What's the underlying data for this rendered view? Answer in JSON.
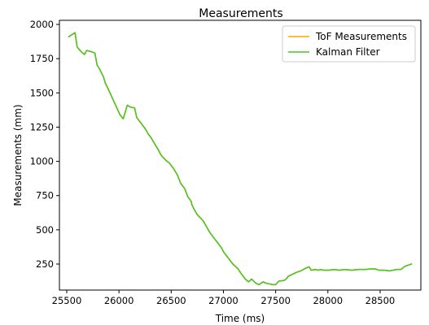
{
  "chart_data": {
    "type": "line",
    "title": "Measurements",
    "xlabel": "Time (ms)",
    "ylabel": "Measurements (mm)",
    "xlim": [
      25430,
      28890
    ],
    "ylim": [
      60,
      2030
    ],
    "xticks": [
      25500,
      26000,
      26500,
      27000,
      27500,
      28000,
      28500
    ],
    "yticks": [
      250,
      500,
      750,
      1000,
      1250,
      1500,
      1750,
      2000
    ],
    "grid": false,
    "legend_position": "top-right",
    "series": [
      {
        "name": "ToF Measurements",
        "color": "#ffa500",
        "x": [
          25520,
          25580,
          25600,
          25640,
          25670,
          25690,
          25740,
          25770,
          25790,
          25810,
          25850,
          25870,
          25890,
          25920,
          25950,
          25980,
          26010,
          26040,
          26080,
          26100,
          26120,
          26150,
          26170,
          26180,
          26210,
          26250,
          26280,
          26310,
          26340,
          26380,
          26400,
          26420,
          26460,
          26480,
          26500,
          26520,
          26560,
          26590,
          26610,
          26630,
          26660,
          26690,
          26700,
          26720,
          26750,
          26790,
          26810,
          26840,
          26870,
          26890,
          26910,
          26950,
          26980,
          27000,
          27030,
          27060,
          27090,
          27120,
          27140,
          27170,
          27210,
          27240,
          27270,
          27310,
          27340,
          27380,
          27410,
          27440,
          27470,
          27500,
          27530,
          27580,
          27600,
          27620,
          27660,
          27700,
          27740,
          27790,
          27820,
          27840,
          27880,
          27910,
          27930,
          27960,
          28010,
          28060,
          28110,
          28160,
          28230,
          28290,
          28360,
          28410,
          28450,
          28490,
          28540,
          28590,
          28620,
          28660,
          28700,
          28730,
          28760,
          28800
        ],
        "values": [
          1910,
          1940,
          1835,
          1800,
          1780,
          1810,
          1800,
          1790,
          1705,
          1680,
          1620,
          1570,
          1540,
          1490,
          1440,
          1390,
          1340,
          1310,
          1410,
          1400,
          1395,
          1390,
          1320,
          1310,
          1280,
          1240,
          1200,
          1170,
          1130,
          1080,
          1050,
          1030,
          1000,
          990,
          970,
          950,
          900,
          840,
          820,
          800,
          740,
          710,
          680,
          650,
          610,
          580,
          560,
          520,
          480,
          460,
          440,
          400,
          370,
          340,
          310,
          280,
          250,
          230,
          215,
          180,
          140,
          120,
          140,
          110,
          100,
          120,
          110,
          105,
          100,
          100,
          125,
          130,
          140,
          160,
          175,
          190,
          200,
          220,
          230,
          205,
          210,
          205,
          210,
          205,
          205,
          210,
          205,
          210,
          205,
          210,
          210,
          215,
          215,
          205,
          205,
          200,
          205,
          210,
          210,
          230,
          240,
          250
        ]
      },
      {
        "name": "Kalman Filter",
        "color": "#4dc42a",
        "x": [
          25520,
          25580,
          25600,
          25640,
          25670,
          25690,
          25740,
          25770,
          25790,
          25810,
          25850,
          25870,
          25890,
          25920,
          25950,
          25980,
          26010,
          26040,
          26080,
          26100,
          26120,
          26150,
          26170,
          26180,
          26210,
          26250,
          26280,
          26310,
          26340,
          26380,
          26400,
          26420,
          26460,
          26480,
          26500,
          26520,
          26560,
          26590,
          26610,
          26630,
          26660,
          26690,
          26700,
          26720,
          26750,
          26790,
          26810,
          26840,
          26870,
          26890,
          26910,
          26950,
          26980,
          27000,
          27030,
          27060,
          27090,
          27120,
          27140,
          27170,
          27210,
          27240,
          27270,
          27310,
          27340,
          27380,
          27410,
          27440,
          27470,
          27500,
          27530,
          27580,
          27600,
          27620,
          27660,
          27700,
          27740,
          27790,
          27820,
          27840,
          27880,
          27910,
          27930,
          27960,
          28010,
          28060,
          28110,
          28160,
          28230,
          28290,
          28360,
          28410,
          28450,
          28490,
          28540,
          28590,
          28620,
          28660,
          28700,
          28730,
          28760,
          28800
        ],
        "values": [
          1910,
          1940,
          1835,
          1800,
          1780,
          1810,
          1800,
          1790,
          1705,
          1680,
          1620,
          1570,
          1540,
          1490,
          1440,
          1390,
          1340,
          1310,
          1410,
          1400,
          1395,
          1390,
          1320,
          1310,
          1280,
          1240,
          1200,
          1170,
          1130,
          1080,
          1050,
          1030,
          1000,
          990,
          970,
          950,
          900,
          840,
          820,
          800,
          740,
          710,
          680,
          650,
          610,
          580,
          560,
          520,
          480,
          460,
          440,
          400,
          370,
          340,
          310,
          280,
          250,
          230,
          215,
          180,
          140,
          120,
          140,
          110,
          100,
          120,
          110,
          105,
          100,
          100,
          125,
          130,
          140,
          160,
          175,
          190,
          200,
          220,
          230,
          205,
          210,
          205,
          210,
          205,
          205,
          210,
          205,
          210,
          205,
          210,
          210,
          215,
          215,
          205,
          205,
          200,
          205,
          210,
          210,
          230,
          240,
          250
        ]
      }
    ]
  }
}
